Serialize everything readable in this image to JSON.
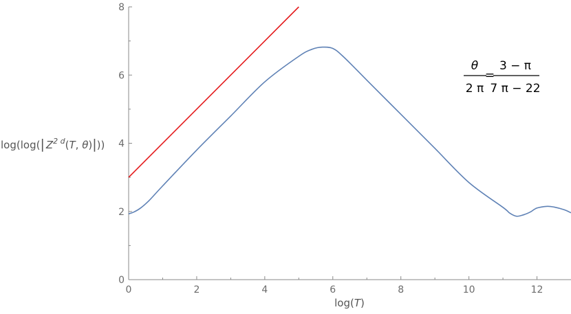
{
  "chart_data": {
    "type": "line",
    "xlabel": "log(T)",
    "ylabel": "log(log(|Z^{2d}(T, θ)|))",
    "xlim": [
      0,
      13
    ],
    "ylim": [
      0,
      8
    ],
    "x_ticks": [
      "0",
      "2",
      "4",
      "6",
      "8",
      "10",
      "12"
    ],
    "y_ticks": [
      "0",
      "2",
      "4",
      "6",
      "8"
    ],
    "grid": false,
    "series": [
      {
        "color": "#e41a1c",
        "x": [
          0,
          5
        ],
        "y": [
          3,
          8
        ]
      },
      {
        "color": "#5e81b5",
        "x": [
          0,
          0.15,
          0.35,
          0.6,
          1,
          2,
          3,
          4,
          5,
          5.4,
          5.7,
          6.0,
          6.3,
          7,
          8,
          9,
          10,
          11,
          11.2,
          11.4,
          11.6,
          11.8,
          12.0,
          12.3,
          12.5,
          12.8,
          13.0
        ],
        "y": [
          1.93,
          1.98,
          2.1,
          2.32,
          2.75,
          3.8,
          4.8,
          5.8,
          6.55,
          6.76,
          6.82,
          6.78,
          6.55,
          5.85,
          4.85,
          3.85,
          2.85,
          2.12,
          1.95,
          1.86,
          1.9,
          1.98,
          2.1,
          2.15,
          2.13,
          2.05,
          1.96
        ]
      }
    ],
    "annotation": {
      "lhs_num": "θ",
      "lhs_den": "2 π",
      "eq": "=",
      "rhs_num": "3 − π",
      "rhs_den": "7 π − 22"
    }
  }
}
